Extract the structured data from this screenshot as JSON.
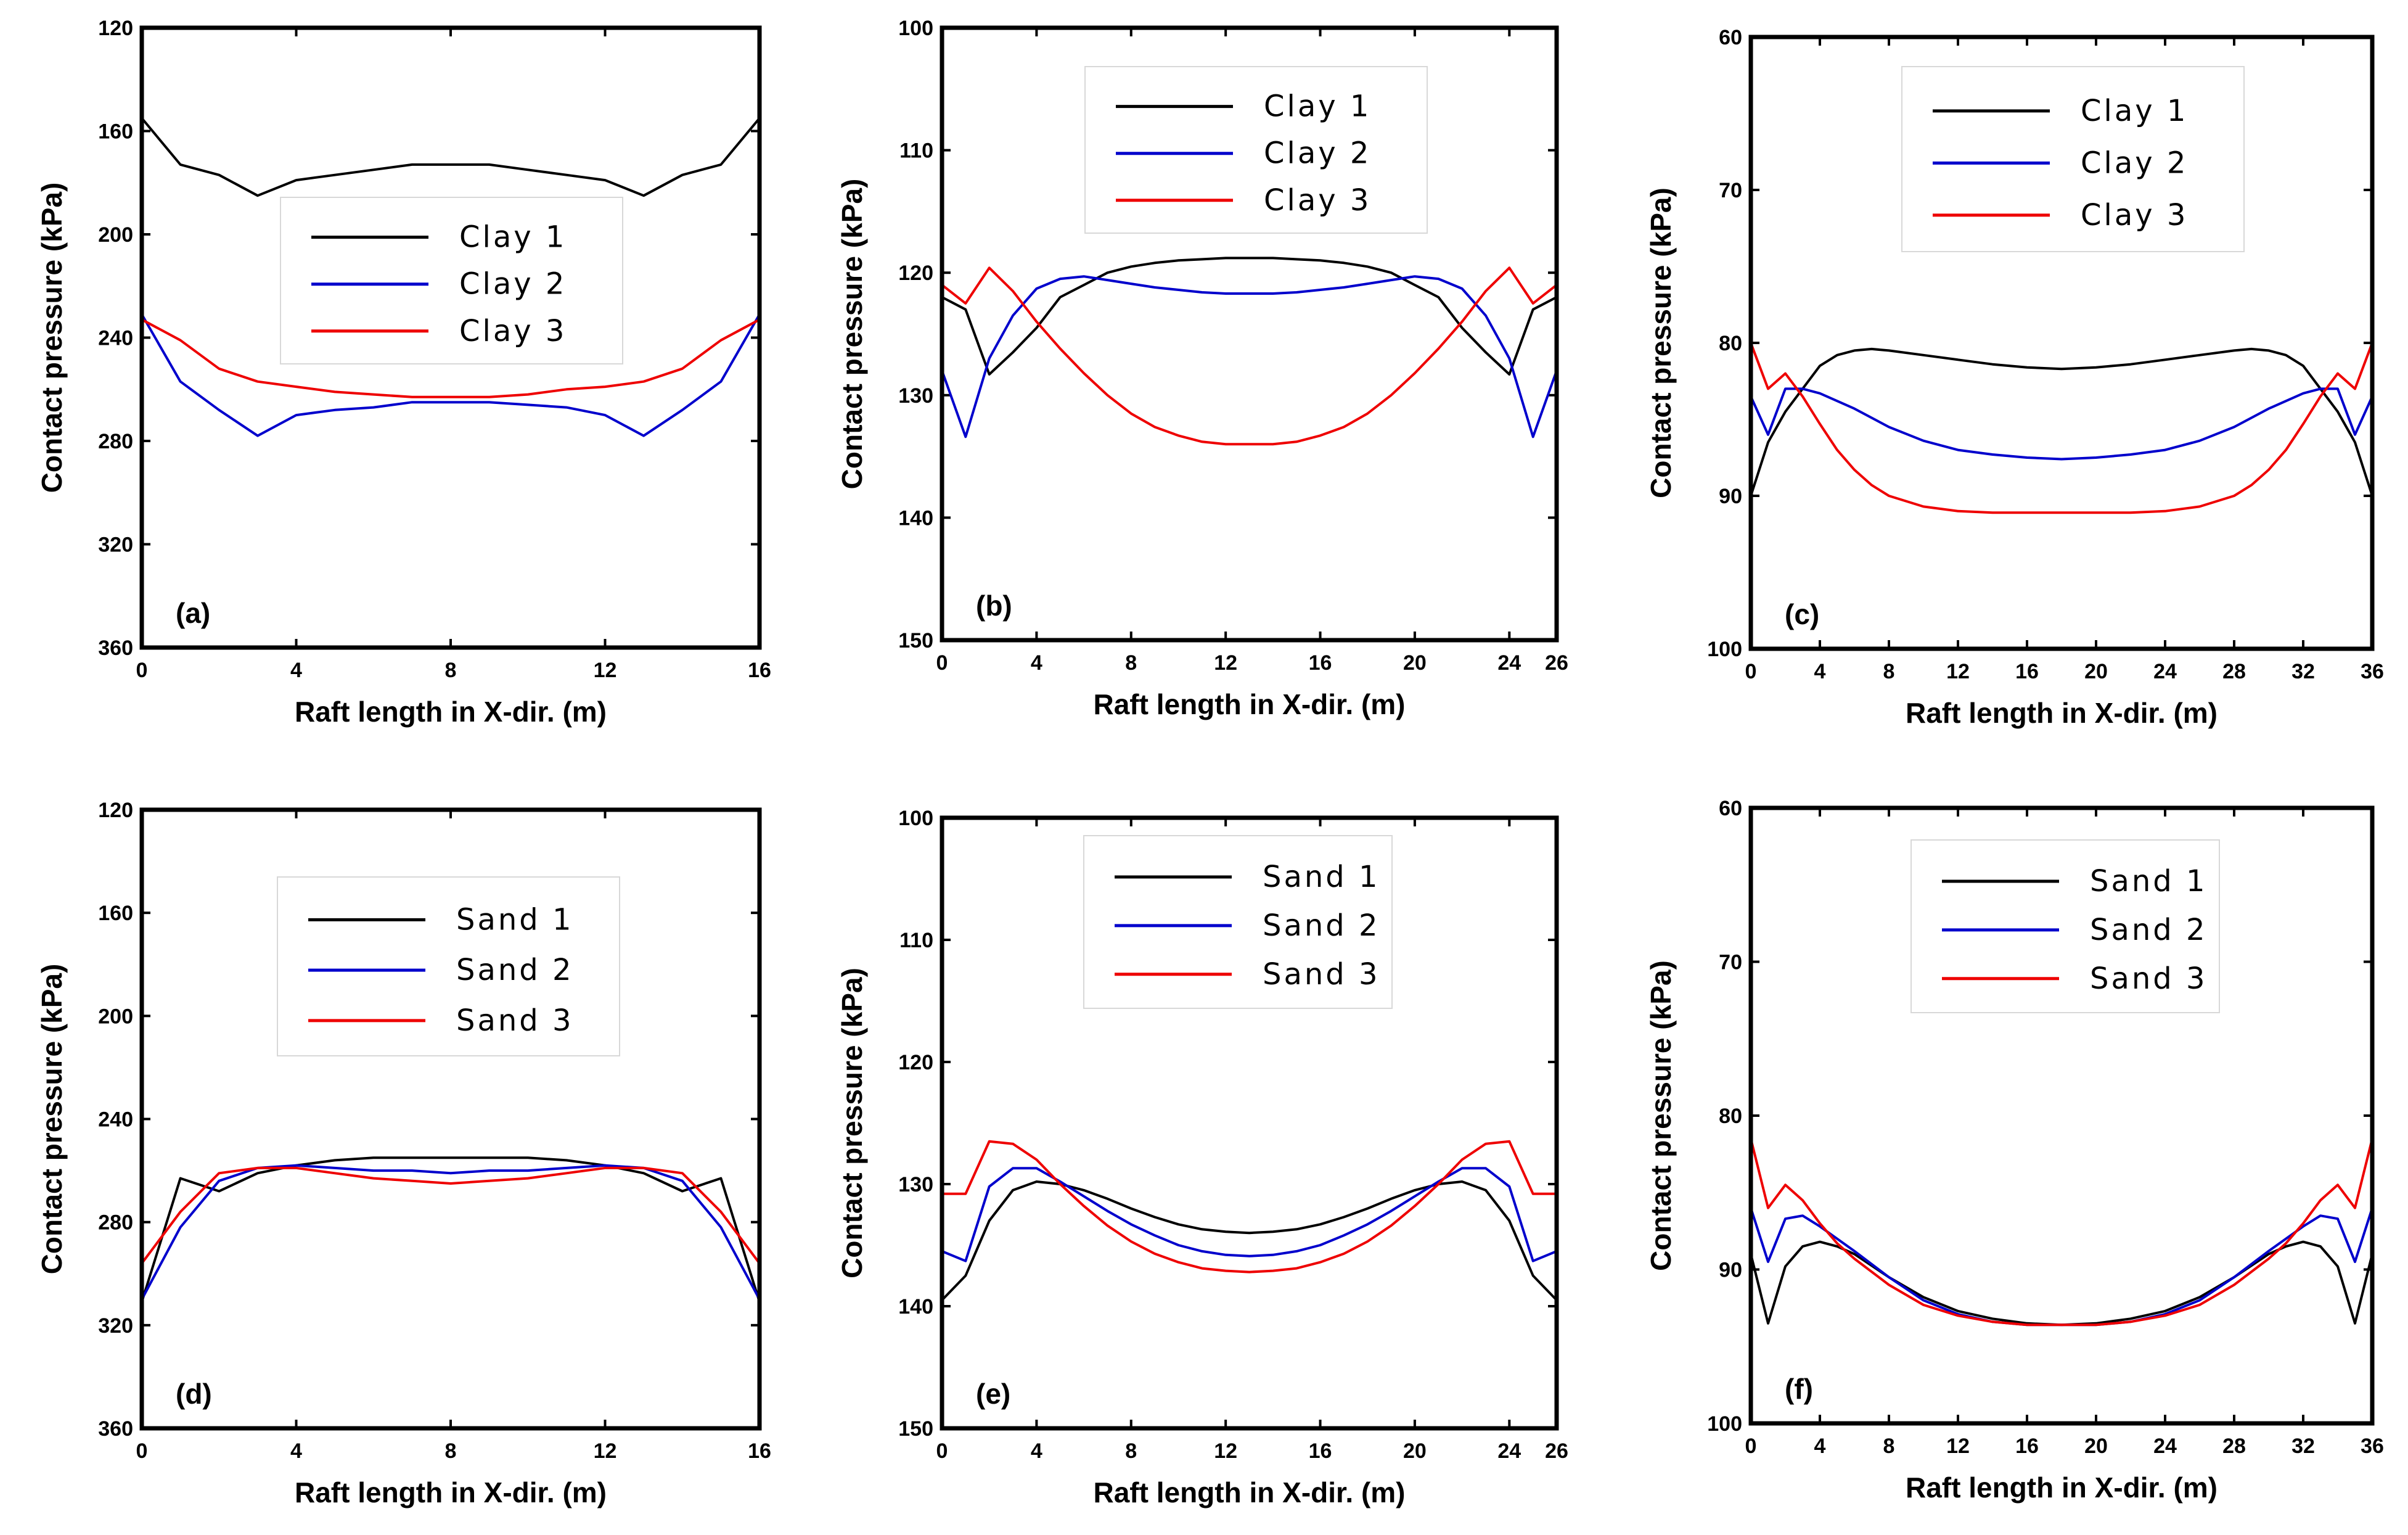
{
  "colors": {
    "series1": "#000000",
    "series2": "#0000cc",
    "series3": "#ee0000"
  },
  "chart_data": [
    {
      "type": "line",
      "panel_label": "(a)",
      "xlabel": "Raft length in X-dir. (m)",
      "ylabel": "Contact pressure (kPa)",
      "xlim": [
        0,
        16
      ],
      "ylim": [
        120,
        360
      ],
      "y_inverted": true,
      "xticks": [
        0,
        4,
        8,
        12,
        16
      ],
      "yticks": [
        120,
        160,
        200,
        240,
        280,
        320,
        360
      ],
      "legend_position": "center",
      "series": [
        {
          "name": "Clay 1",
          "x": [
            0,
            1,
            2,
            3,
            4,
            5,
            6,
            7,
            8,
            9,
            10,
            11,
            12,
            13,
            14,
            15,
            16
          ],
          "y": [
            155,
            173,
            177,
            185,
            179,
            177,
            175,
            173,
            173,
            173,
            175,
            177,
            179,
            185,
            177,
            173,
            155
          ]
        },
        {
          "name": "Clay 2",
          "x": [
            0,
            1,
            2,
            3,
            4,
            5,
            6,
            7,
            8,
            9,
            10,
            11,
            12,
            13,
            14,
            15,
            16
          ],
          "y": [
            231,
            257,
            268,
            278,
            270,
            268,
            267,
            265,
            265,
            265,
            266,
            267,
            270,
            278,
            268,
            257,
            231
          ]
        },
        {
          "name": "Clay 3",
          "x": [
            0,
            1,
            2,
            3,
            4,
            5,
            6,
            7,
            8,
            9,
            10,
            11,
            12,
            13,
            14,
            15,
            16
          ],
          "y": [
            233,
            241,
            252,
            257,
            259,
            261,
            262,
            263,
            263,
            263,
            262,
            260,
            259,
            257,
            252,
            241,
            233
          ]
        }
      ]
    },
    {
      "type": "line",
      "panel_label": "(b)",
      "xlabel": "Raft length in X-dir. (m)",
      "ylabel": "Contact pressure (kPa)",
      "xlim": [
        0,
        26
      ],
      "ylim": [
        100,
        150
      ],
      "y_inverted": true,
      "xticks": [
        0,
        4,
        8,
        12,
        16,
        20,
        24,
        26
      ],
      "yticks": [
        100,
        110,
        120,
        130,
        140,
        150
      ],
      "legend_position": "top-left",
      "series": [
        {
          "name": "Clay 1",
          "x": [
            0,
            1,
            2,
            3,
            4,
            5,
            6,
            7,
            8,
            9,
            10,
            11,
            12,
            13,
            14,
            15,
            16,
            17,
            18,
            19,
            20,
            21,
            22,
            23,
            24,
            25,
            26
          ],
          "y": [
            122,
            123,
            128.3,
            126.5,
            124.5,
            122,
            121,
            120,
            119.5,
            119.2,
            119,
            118.9,
            118.8,
            118.8,
            118.8,
            118.9,
            119,
            119.2,
            119.5,
            120,
            121,
            122,
            124.5,
            126.5,
            128.3,
            123,
            122
          ]
        },
        {
          "name": "Clay 2",
          "x": [
            0,
            1,
            2,
            3,
            4,
            5,
            6,
            7,
            8,
            9,
            10,
            11,
            12,
            13,
            14,
            15,
            16,
            17,
            18,
            19,
            20,
            21,
            22,
            23,
            24,
            25,
            26
          ],
          "y": [
            128,
            133.4,
            127,
            123.5,
            121.3,
            120.5,
            120.3,
            120.6,
            120.9,
            121.2,
            121.4,
            121.6,
            121.7,
            121.7,
            121.7,
            121.6,
            121.4,
            121.2,
            120.9,
            120.6,
            120.3,
            120.5,
            121.3,
            123.5,
            127,
            133.4,
            128
          ]
        },
        {
          "name": "Clay 3",
          "x": [
            0,
            1,
            2,
            3,
            4,
            5,
            6,
            7,
            8,
            9,
            10,
            11,
            12,
            13,
            14,
            15,
            16,
            17,
            18,
            19,
            20,
            21,
            22,
            23,
            24,
            25,
            26
          ],
          "y": [
            121,
            122.5,
            119.6,
            121.5,
            124,
            126.2,
            128.2,
            130,
            131.5,
            132.6,
            133.3,
            133.8,
            134,
            134,
            134,
            133.8,
            133.3,
            132.6,
            131.5,
            130,
            128.2,
            126.2,
            124,
            121.5,
            119.6,
            122.5,
            121
          ]
        }
      ]
    },
    {
      "type": "line",
      "panel_label": "(c)",
      "xlabel": "Raft length in X-dir. (m)",
      "ylabel": "Contact pressure (kPa)",
      "xlim": [
        0,
        36
      ],
      "ylim": [
        60,
        100
      ],
      "y_inverted": true,
      "xticks": [
        0,
        4,
        8,
        12,
        16,
        20,
        24,
        28,
        32,
        36
      ],
      "yticks": [
        60,
        70,
        80,
        90,
        100
      ],
      "legend_position": "top-center",
      "series": [
        {
          "name": "Clay 1",
          "x": [
            0,
            1,
            2,
            3,
            4,
            5,
            6,
            7,
            8,
            10,
            12,
            14,
            16,
            18,
            20,
            22,
            24,
            26,
            28,
            29,
            30,
            31,
            32,
            33,
            34,
            35,
            36
          ],
          "y": [
            90,
            86.5,
            84.5,
            83,
            81.5,
            80.8,
            80.5,
            80.4,
            80.5,
            80.8,
            81.1,
            81.4,
            81.6,
            81.7,
            81.6,
            81.4,
            81.1,
            80.8,
            80.5,
            80.4,
            80.5,
            80.8,
            81.5,
            83,
            84.5,
            86.5,
            90
          ]
        },
        {
          "name": "Clay 2",
          "x": [
            0,
            1,
            2,
            3,
            4,
            6,
            8,
            10,
            12,
            14,
            16,
            18,
            20,
            22,
            24,
            26,
            28,
            30,
            32,
            33,
            34,
            35,
            36
          ],
          "y": [
            83.5,
            86,
            83,
            83,
            83.3,
            84.3,
            85.5,
            86.4,
            87,
            87.3,
            87.5,
            87.6,
            87.5,
            87.3,
            87,
            86.4,
            85.5,
            84.3,
            83.3,
            83,
            83,
            86,
            83.5
          ]
        },
        {
          "name": "Clay 3",
          "x": [
            0,
            1,
            2,
            3,
            4,
            5,
            6,
            7,
            8,
            10,
            12,
            14,
            16,
            18,
            20,
            22,
            24,
            26,
            28,
            29,
            30,
            31,
            32,
            33,
            34,
            35,
            36
          ],
          "y": [
            80,
            83,
            82,
            83.5,
            85.3,
            87,
            88.3,
            89.3,
            90,
            90.7,
            91,
            91.1,
            91.1,
            91.1,
            91.1,
            91.1,
            91,
            90.7,
            90,
            89.3,
            88.3,
            87,
            85.3,
            83.5,
            82,
            83,
            80
          ]
        }
      ]
    },
    {
      "type": "line",
      "panel_label": "(d)",
      "xlabel": "Raft length in X-dir. (m)",
      "ylabel": "Contact pressure (kPa)",
      "xlim": [
        0,
        16
      ],
      "ylim": [
        120,
        360
      ],
      "y_inverted": true,
      "xticks": [
        0,
        4,
        8,
        12,
        16
      ],
      "yticks": [
        120,
        160,
        200,
        240,
        280,
        320,
        360
      ],
      "legend_position": "top-left",
      "series": [
        {
          "name": "Sand 1",
          "x": [
            0,
            1,
            2,
            3,
            4,
            5,
            6,
            7,
            8,
            9,
            10,
            11,
            12,
            13,
            14,
            15,
            16
          ],
          "y": [
            311,
            263,
            268,
            261,
            258,
            256,
            255,
            255,
            255,
            255,
            255,
            256,
            258,
            261,
            268,
            263,
            311
          ]
        },
        {
          "name": "Sand 2",
          "x": [
            0,
            1,
            2,
            3,
            4,
            5,
            6,
            7,
            8,
            9,
            10,
            11,
            12,
            13,
            14,
            15,
            16
          ],
          "y": [
            310,
            282,
            264,
            259,
            258,
            259,
            260,
            260,
            261,
            260,
            260,
            259,
            258,
            259,
            264,
            282,
            310
          ]
        },
        {
          "name": "Sand 3",
          "x": [
            0,
            1,
            2,
            3,
            4,
            5,
            6,
            7,
            8,
            9,
            10,
            11,
            12,
            13,
            14,
            15,
            16
          ],
          "y": [
            296,
            276,
            261,
            259,
            259,
            261,
            263,
            264,
            265,
            264,
            263,
            261,
            259,
            259,
            261,
            276,
            296
          ]
        }
      ]
    },
    {
      "type": "line",
      "panel_label": "(e)",
      "xlabel": "Raft length in X-dir. (m)",
      "ylabel": "Contact pressure (kPa)",
      "xlim": [
        0,
        26
      ],
      "ylim": [
        100,
        150
      ],
      "y_inverted": true,
      "xticks": [
        0,
        4,
        8,
        12,
        16,
        20,
        24,
        26
      ],
      "yticks": [
        100,
        110,
        120,
        130,
        140,
        150
      ],
      "legend_position": "top-left",
      "series": [
        {
          "name": "Sand 1",
          "x": [
            0,
            1,
            2,
            3,
            4,
            5,
            6,
            7,
            8,
            9,
            10,
            11,
            12,
            13,
            14,
            15,
            16,
            17,
            18,
            19,
            20,
            21,
            22,
            23,
            24,
            25,
            26
          ],
          "y": [
            139.5,
            137.5,
            133,
            130.5,
            129.8,
            130,
            130.5,
            131.2,
            132,
            132.7,
            133.3,
            133.7,
            133.9,
            134,
            133.9,
            133.7,
            133.3,
            132.7,
            132,
            131.2,
            130.5,
            130,
            129.8,
            130.5,
            133,
            137.5,
            139.5
          ]
        },
        {
          "name": "Sand 2",
          "x": [
            0,
            1,
            2,
            3,
            4,
            5,
            6,
            7,
            8,
            9,
            10,
            11,
            12,
            13,
            14,
            15,
            16,
            17,
            18,
            19,
            20,
            21,
            22,
            23,
            24,
            25,
            26
          ],
          "y": [
            135.5,
            136.3,
            130.2,
            128.7,
            128.7,
            129.8,
            131,
            132.2,
            133.3,
            134.2,
            135,
            135.5,
            135.8,
            135.9,
            135.8,
            135.5,
            135,
            134.2,
            133.3,
            132.2,
            131,
            129.8,
            128.7,
            128.7,
            130.2,
            136.3,
            135.5
          ]
        },
        {
          "name": "Sand 3",
          "x": [
            0,
            1,
            2,
            3,
            4,
            5,
            6,
            7,
            8,
            9,
            10,
            11,
            12,
            13,
            14,
            15,
            16,
            17,
            18,
            19,
            20,
            21,
            22,
            23,
            24,
            25,
            26
          ],
          "y": [
            130.8,
            130.8,
            126.5,
            126.7,
            128,
            130,
            131.8,
            133.4,
            134.7,
            135.7,
            136.4,
            136.9,
            137.1,
            137.2,
            137.1,
            136.9,
            136.4,
            135.7,
            134.7,
            133.4,
            131.8,
            130,
            128,
            126.7,
            126.5,
            130.8,
            130.8
          ]
        }
      ]
    },
    {
      "type": "line",
      "panel_label": "(f)",
      "xlabel": "Raft length in X-dir. (m)",
      "ylabel": "Contact pressure (kPa)",
      "xlim": [
        0,
        36
      ],
      "ylim": [
        60,
        100
      ],
      "y_inverted": true,
      "xticks": [
        0,
        4,
        8,
        12,
        16,
        20,
        24,
        28,
        32,
        36
      ],
      "yticks": [
        60,
        70,
        80,
        90,
        100
      ],
      "legend_position": "top-center",
      "series": [
        {
          "name": "Sand 1",
          "x": [
            0,
            1,
            2,
            3,
            4,
            5,
            6,
            8,
            10,
            12,
            14,
            16,
            18,
            20,
            22,
            24,
            26,
            28,
            30,
            31,
            32,
            33,
            34,
            35,
            36
          ],
          "y": [
            89,
            93.5,
            89.8,
            88.5,
            88.2,
            88.5,
            89,
            90.5,
            91.8,
            92.7,
            93.2,
            93.5,
            93.6,
            93.5,
            93.2,
            92.7,
            91.8,
            90.5,
            89,
            88.5,
            88.2,
            88.5,
            89.8,
            93.5,
            89
          ]
        },
        {
          "name": "Sand 2",
          "x": [
            0,
            1,
            2,
            3,
            4,
            5,
            6,
            8,
            10,
            12,
            14,
            16,
            18,
            20,
            22,
            24,
            26,
            28,
            30,
            31,
            32,
            33,
            34,
            35,
            36
          ],
          "y": [
            86,
            89.5,
            86.7,
            86.5,
            87.2,
            88,
            88.8,
            90.5,
            92,
            92.9,
            93.4,
            93.6,
            93.6,
            93.6,
            93.4,
            92.9,
            92,
            90.5,
            88.8,
            88,
            87.2,
            86.5,
            86.7,
            89.5,
            86
          ]
        },
        {
          "name": "Sand 3",
          "x": [
            0,
            1,
            2,
            3,
            4,
            5,
            6,
            8,
            10,
            12,
            14,
            16,
            18,
            20,
            22,
            24,
            26,
            28,
            30,
            31,
            32,
            33,
            34,
            35,
            36
          ],
          "y": [
            81.5,
            86,
            84.5,
            85.5,
            87,
            88.3,
            89.3,
            91,
            92.3,
            93,
            93.4,
            93.6,
            93.6,
            93.6,
            93.4,
            93,
            92.3,
            91,
            89.3,
            88.3,
            87,
            85.5,
            84.5,
            86,
            81.5
          ]
        }
      ]
    }
  ]
}
